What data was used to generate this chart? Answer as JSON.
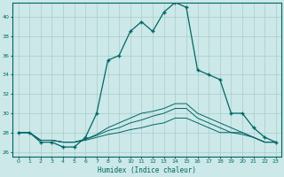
{
  "xlabel": "Humidex (Indice chaleur)",
  "background_color": "#cce8e8",
  "grid_color": "#aacccc",
  "line_color": "#006666",
  "xlim": [
    -0.5,
    23.5
  ],
  "ylim": [
    25.5,
    41.5
  ],
  "yticks": [
    26,
    28,
    30,
    32,
    34,
    36,
    38,
    40
  ],
  "xticks": [
    0,
    1,
    2,
    3,
    4,
    5,
    6,
    7,
    8,
    9,
    10,
    11,
    12,
    13,
    14,
    15,
    16,
    17,
    18,
    19,
    20,
    21,
    22,
    23
  ],
  "main_x": [
    0,
    1,
    2,
    3,
    4,
    5,
    6,
    7,
    8,
    9,
    10,
    11,
    12,
    13,
    14,
    15,
    16,
    17,
    18,
    19,
    20,
    21,
    22,
    23
  ],
  "main_y": [
    28,
    28,
    27,
    27,
    26.5,
    26.5,
    27.5,
    30,
    35.5,
    36,
    38.5,
    39.5,
    38.5,
    40.5,
    41.5,
    41,
    34.5,
    34,
    33.5,
    30,
    30,
    28.5,
    27.5,
    27
  ],
  "flat1_x": [
    0,
    1,
    2,
    3,
    4,
    5,
    6,
    7,
    8,
    9,
    10,
    11,
    12,
    13,
    14,
    15,
    16,
    17,
    18,
    19,
    20,
    21,
    22,
    23
  ],
  "flat1_y": [
    28,
    28,
    27.2,
    27.2,
    27,
    27,
    27.2,
    27.5,
    27.8,
    28,
    28.3,
    28.5,
    28.8,
    29,
    29.5,
    29.5,
    29,
    28.5,
    28,
    28,
    27.8,
    27.5,
    27,
    27
  ],
  "flat2_x": [
    0,
    1,
    2,
    3,
    4,
    5,
    6,
    7,
    8,
    9,
    10,
    11,
    12,
    13,
    14,
    15,
    16,
    17,
    18,
    19,
    20,
    21,
    22,
    23
  ],
  "flat2_y": [
    28,
    28,
    27.2,
    27.2,
    27,
    27,
    27.3,
    27.7,
    28.2,
    28.5,
    29,
    29.3,
    29.7,
    30,
    30.5,
    30.5,
    29.5,
    29,
    28.5,
    28,
    28,
    27.5,
    27,
    27
  ],
  "flat3_x": [
    0,
    1,
    2,
    3,
    4,
    5,
    6,
    7,
    8,
    9,
    10,
    11,
    12,
    13,
    14,
    15,
    16,
    17,
    18,
    19,
    20,
    21,
    22,
    23
  ],
  "flat3_y": [
    28,
    28,
    27.2,
    27.2,
    27,
    27,
    27.3,
    27.8,
    28.5,
    29,
    29.5,
    30,
    30.2,
    30.5,
    31,
    31,
    30,
    29.5,
    29,
    28.5,
    28,
    27.5,
    27,
    27
  ]
}
